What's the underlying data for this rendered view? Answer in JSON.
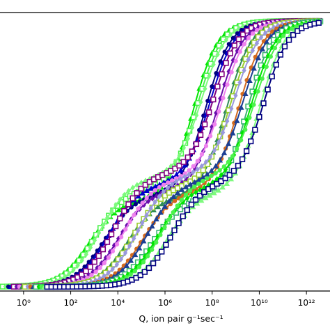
{
  "chart_data": {
    "type": "scatter",
    "xscale": "log",
    "xlabel": "Q, ion pair g⁻¹sec⁻¹",
    "ylabel": "",
    "title": "",
    "xlim": [
      0.1,
      10000000000000.0
    ],
    "ylim": [
      0,
      1
    ],
    "xticks": [
      {
        "value": 1,
        "label": "10⁰"
      },
      {
        "value": 100,
        "label": "10²"
      },
      {
        "value": 10000,
        "label": "10⁴"
      },
      {
        "value": 1000000,
        "label": "10⁶"
      },
      {
        "value": 100000000,
        "label": "10⁸"
      },
      {
        "value": 10000000000,
        "label": "10¹⁰"
      },
      {
        "value": 1000000000000,
        "label": "10¹²"
      }
    ],
    "y_tick_labels_visible": false,
    "legend": "none",
    "colors": [
      "#00e600",
      "#4cf24c",
      "#7dfa7d",
      "#000080",
      "#0000cc",
      "#800080",
      "#6a0dad",
      "#ee82ee",
      "#2e8b57",
      "#9acd32",
      "#9999dd",
      "#d2691e",
      "#1c3f94",
      "#3cb371"
    ],
    "marker_note": "curves drawn with triangles, squares, diamonds and circles; leftmost curves bright green, rightmost purple",
    "series_template": {
      "shape": "two-step sigmoid in log10(Q)",
      "start_log10_range": [
        -1.0,
        1.0
      ],
      "first_step_center_log10_range": [
        2.8,
        6.3
      ],
      "plateau_y_range": [
        0.33,
        0.43
      ],
      "second_step_center_log10_range": [
        7.2,
        10.2
      ],
      "saturation_y": 0.97,
      "series_count": 18
    }
  }
}
